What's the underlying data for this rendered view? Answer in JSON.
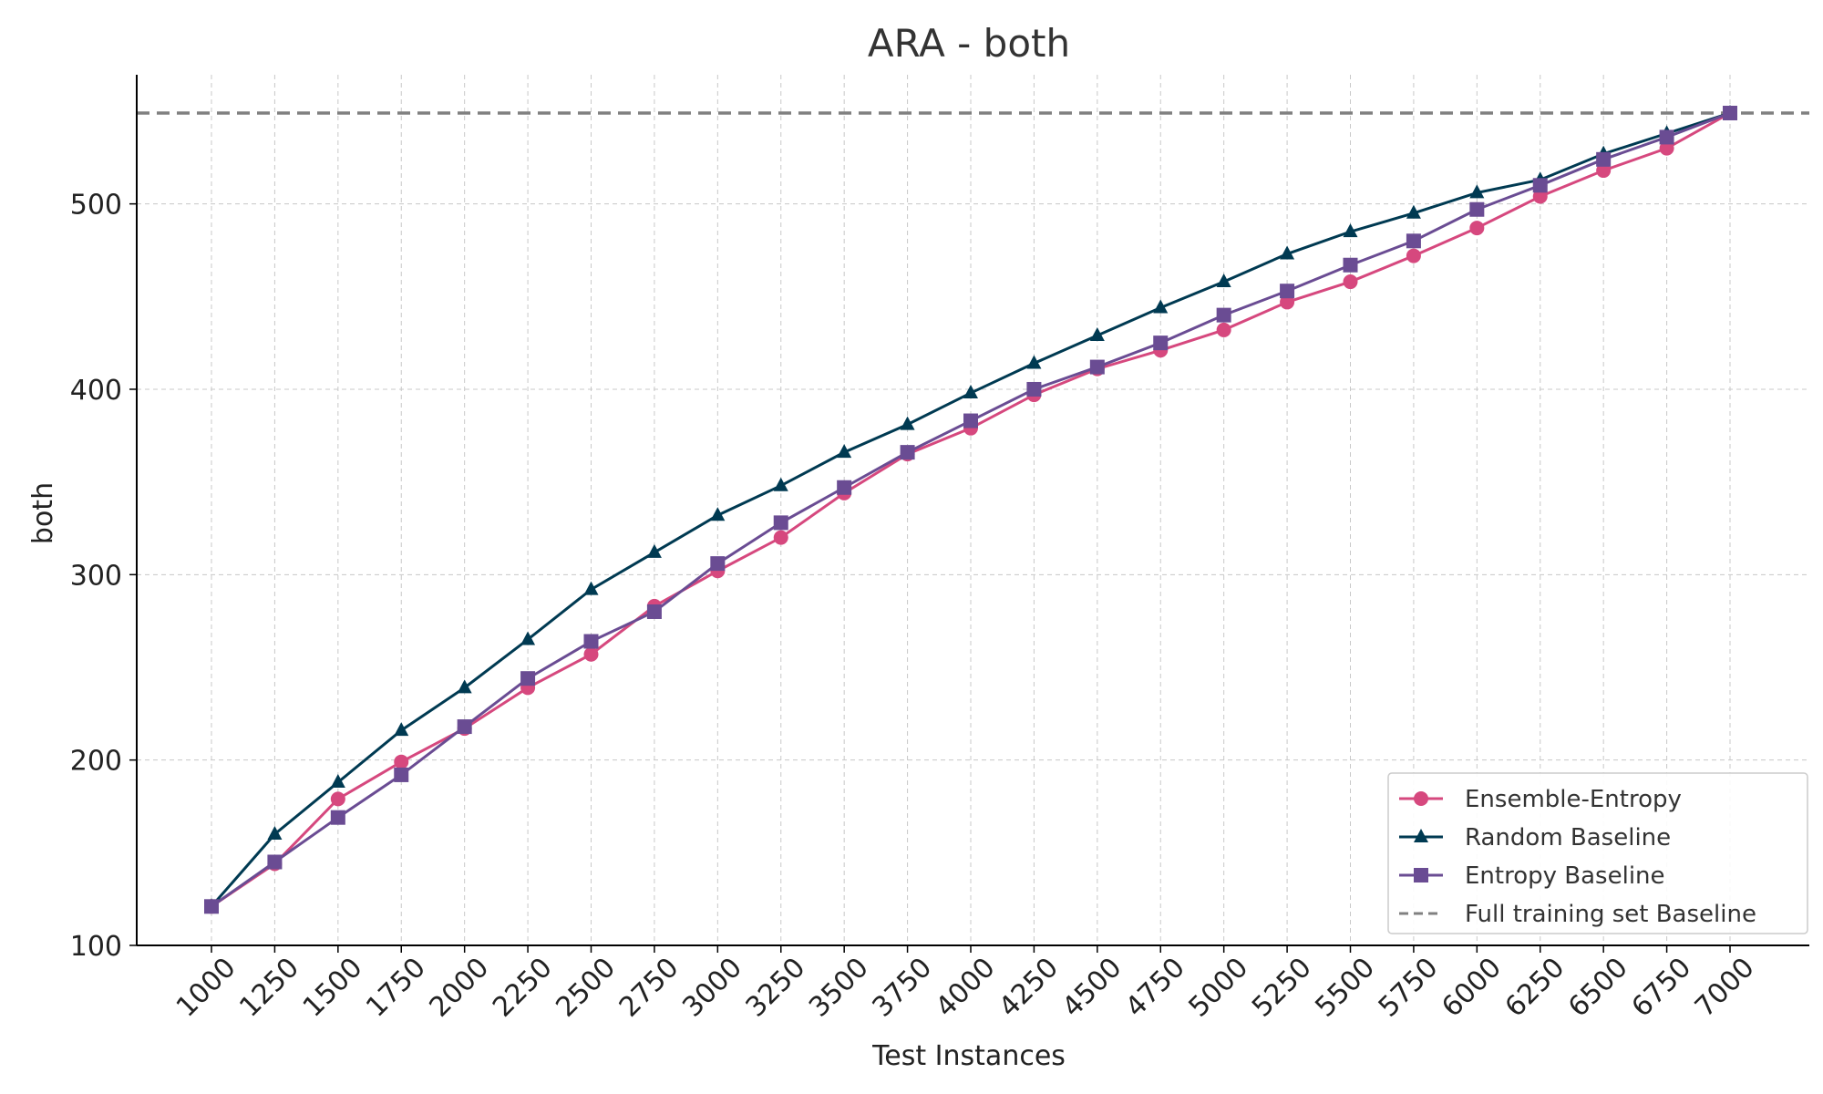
{
  "chart_data": {
    "type": "line",
    "title": "ARA - both",
    "xlabel": "Test Instances",
    "ylabel": "both",
    "x": [
      1000,
      1250,
      1500,
      1750,
      2000,
      2250,
      2500,
      2750,
      3000,
      3250,
      3500,
      3750,
      4000,
      4250,
      4500,
      4750,
      5000,
      5250,
      5500,
      5750,
      6000,
      6250,
      6500,
      6750,
      7000
    ],
    "x_tick_labels": [
      "1000",
      "1250",
      "1500",
      "1750",
      "2000",
      "2250",
      "2500",
      "2750",
      "3000",
      "3250",
      "3500",
      "3750",
      "4000",
      "4250",
      "4500",
      "4750",
      "5000",
      "5250",
      "5500",
      "5750",
      "6000",
      "6250",
      "6500",
      "6750",
      "7000"
    ],
    "y_ticks": [
      100,
      200,
      300,
      400,
      500
    ],
    "y_tick_labels": [
      "100",
      "200",
      "300",
      "400",
      "500"
    ],
    "ylim": [
      100,
      570
    ],
    "grid": true,
    "legend_position": "lower-right",
    "series": [
      {
        "name": "Ensemble-Entropy",
        "color": "#d6487e",
        "marker": "circle",
        "values": [
          121,
          144,
          179,
          199,
          217,
          239,
          257,
          283,
          302,
          320,
          344,
          365,
          379,
          397,
          411,
          421,
          432,
          447,
          458,
          472,
          487,
          504,
          518,
          530,
          549
        ]
      },
      {
        "name": "Random Baseline",
        "color": "#003a52",
        "marker": "triangle",
        "values": [
          121,
          160,
          188,
          216,
          239,
          265,
          292,
          312,
          332,
          348,
          366,
          381,
          398,
          414,
          429,
          444,
          458,
          473,
          485,
          495,
          506,
          513,
          527,
          538,
          549
        ]
      },
      {
        "name": "Entropy Baseline",
        "color": "#6a4c93",
        "marker": "square",
        "values": [
          121,
          145,
          169,
          192,
          218,
          244,
          264,
          280,
          306,
          328,
          347,
          366,
          383,
          400,
          412,
          425,
          440,
          453,
          467,
          480,
          497,
          510,
          524,
          536,
          549
        ]
      }
    ],
    "reference_line": {
      "name": "Full training set Baseline",
      "value": 549,
      "color": "#808080",
      "style": "dashed"
    }
  }
}
